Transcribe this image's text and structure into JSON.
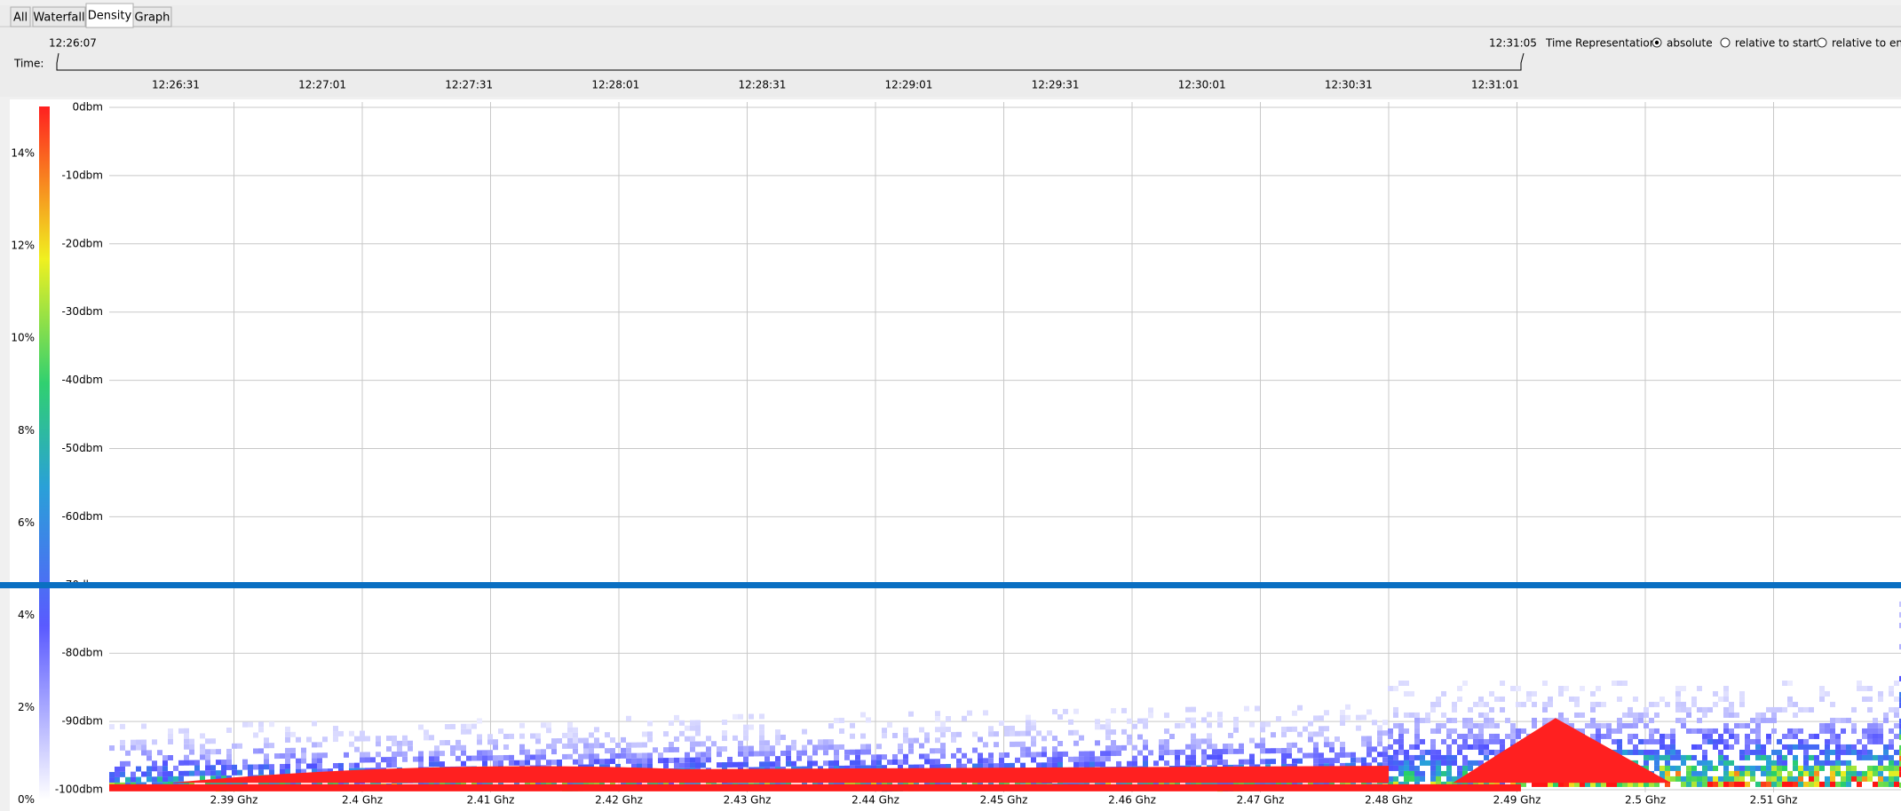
{
  "tabs": [
    "All",
    "Waterfall",
    "Density",
    "Graph"
  ],
  "time_bar": {
    "label": "Time:",
    "start": "12:26:07",
    "end": "12:31:05",
    "ticks": [
      "12:26:31",
      "12:27:01",
      "12:27:31",
      "12:28:01",
      "12:28:31",
      "12:29:01",
      "12:29:31",
      "12:30:01",
      "12:30:31",
      "12:31:01"
    ]
  },
  "time_representation": {
    "label": "Time Representation:",
    "options": [
      "absolute",
      "relative to start",
      "relative to end"
    ]
  },
  "density": {
    "color_scale": [
      "14%",
      "12%",
      "10%",
      "8%",
      "6%",
      "4%",
      "2%",
      "0%"
    ],
    "y_axis": [
      "0dbm",
      "-10dbm",
      "-20dbm",
      "-30dbm",
      "-40dbm",
      "-50dbm",
      "-60dbm",
      "-70dbm",
      "-80dbm",
      "-90dbm",
      "-100dbm"
    ],
    "x_axis": [
      "2.39 Ghz",
      "2.4 Ghz",
      "2.41 Ghz",
      "2.42 Ghz",
      "2.43 Ghz",
      "2.44 Ghz",
      "2.45 Ghz",
      "2.46 Ghz",
      "2.47 Ghz",
      "2.48 Ghz",
      "2.49 Ghz",
      "2.5 Ghz",
      "2.51 Ghz"
    ]
  }
}
